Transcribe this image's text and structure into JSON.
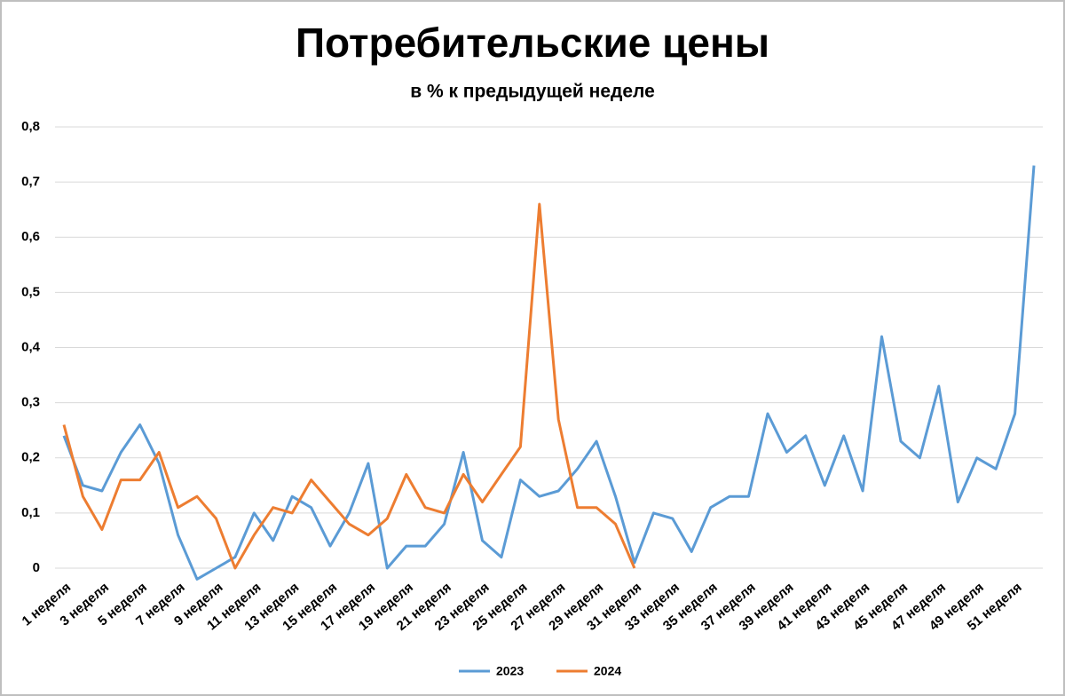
{
  "chart_data": {
    "type": "line",
    "title": "Потребительские цены",
    "subtitle": "в % к предыдущей неделе",
    "categories": [
      "1 неделя",
      null,
      "3 неделя",
      null,
      "5 неделя",
      null,
      "7 неделя",
      null,
      "9 неделя",
      null,
      "11 неделя",
      null,
      "13 неделя",
      null,
      "15 неделя",
      null,
      "17 неделя",
      null,
      "19 неделя",
      null,
      "21 неделя",
      null,
      "23 неделя",
      null,
      "25 неделя",
      null,
      "27 неделя",
      null,
      "29 неделя",
      null,
      "31 неделя",
      null,
      "33 неделя",
      null,
      "35 неделя",
      null,
      "37 неделя",
      null,
      "39 неделя",
      null,
      "41 неделя",
      null,
      "43 неделя",
      null,
      "45 неделя",
      null,
      "47 неделя",
      null,
      "49 неделя",
      null,
      "51 неделя",
      null
    ],
    "series": [
      {
        "name": "2023",
        "color": "#5b9bd5",
        "values": [
          0.24,
          0.15,
          0.14,
          0.21,
          0.26,
          0.19,
          0.06,
          -0.02,
          0.0,
          0.02,
          0.1,
          0.05,
          0.13,
          0.11,
          0.04,
          0.1,
          0.19,
          0.0,
          0.04,
          0.04,
          0.08,
          0.21,
          0.05,
          0.02,
          0.16,
          0.13,
          0.14,
          0.18,
          0.23,
          0.13,
          0.01,
          0.1,
          0.09,
          0.03,
          0.11,
          0.13,
          0.13,
          0.28,
          0.21,
          0.24,
          0.15,
          0.24,
          0.14,
          0.42,
          0.23,
          0.2,
          0.33,
          0.12,
          0.2,
          0.18,
          0.28,
          0.73
        ]
      },
      {
        "name": "2024",
        "color": "#ed7d31",
        "values": [
          0.26,
          0.13,
          0.07,
          0.16,
          0.16,
          0.21,
          0.11,
          0.13,
          0.09,
          0.0,
          0.06,
          0.11,
          0.1,
          0.16,
          0.12,
          0.08,
          0.06,
          0.09,
          0.17,
          0.11,
          0.1,
          0.17,
          0.12,
          0.17,
          0.22,
          0.66,
          0.27,
          0.11,
          0.11,
          0.08,
          0.0,
          null,
          null,
          null,
          null,
          null,
          null,
          null,
          null,
          null,
          null,
          null,
          null,
          null,
          null,
          null,
          null,
          null,
          null,
          null,
          null,
          null
        ]
      }
    ],
    "ylim": [
      0,
      0.8
    ],
    "yticks": [
      0,
      {
        "value": 0.1,
        "label": "0,1"
      },
      {
        "value": 0.2,
        "label": "0,2"
      },
      {
        "value": 0.3,
        "label": "0,3"
      },
      {
        "value": 0.4,
        "label": "0,4"
      },
      {
        "value": 0.5,
        "label": "0,5"
      },
      {
        "value": 0.6,
        "label": "0,6"
      },
      {
        "value": 0.7,
        "label": "0,7"
      },
      {
        "value": 0.8,
        "label": "0,8"
      }
    ],
    "grid": true,
    "legend": "bottom"
  }
}
